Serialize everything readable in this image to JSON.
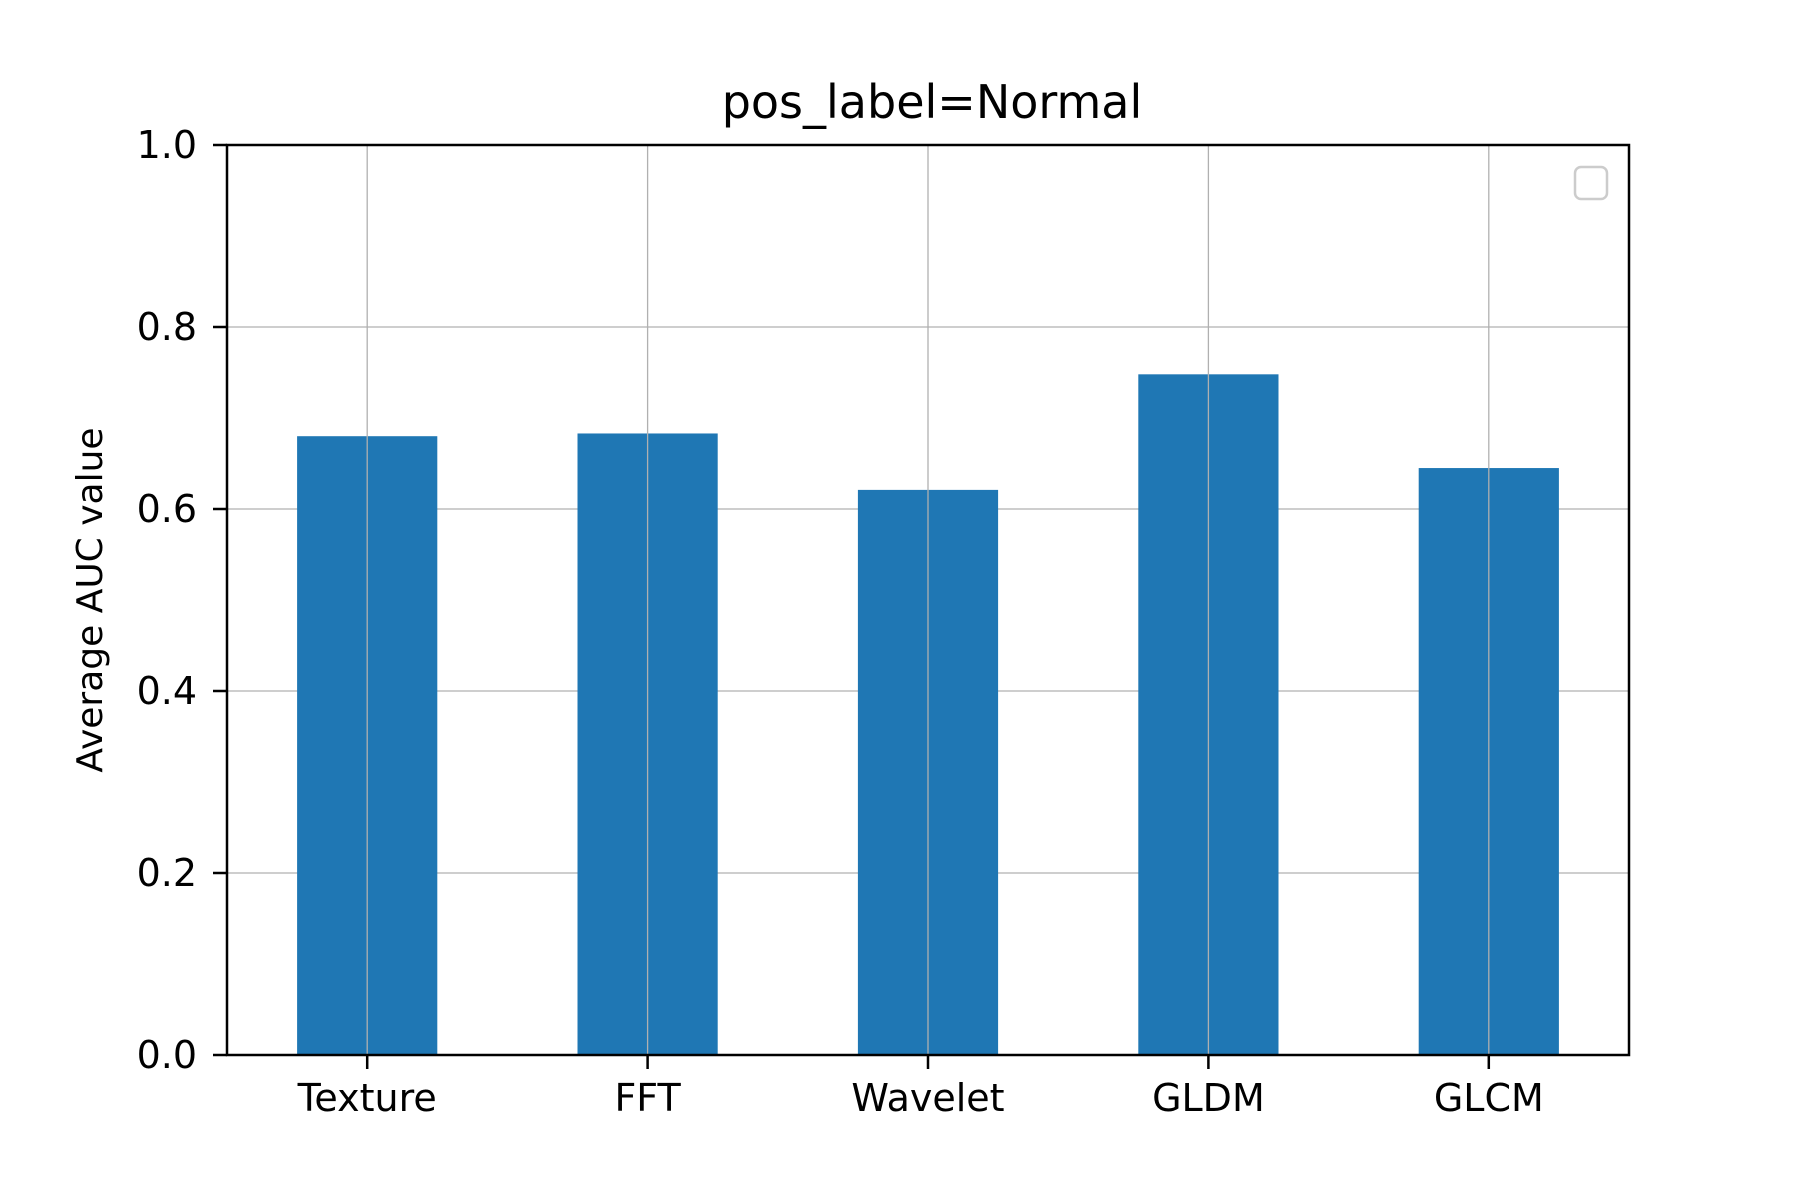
{
  "chart_data": {
    "type": "bar",
    "title": "pos_label=Normal",
    "xlabel": "",
    "ylabel": "Average AUC value",
    "categories": [
      "Texture",
      "FFT",
      "Wavelet",
      "GLDM",
      "GLCM"
    ],
    "values": [
      0.68,
      0.683,
      0.621,
      0.748,
      0.645
    ],
    "ylim": [
      0,
      1.0
    ],
    "yticks": [
      "0.0",
      "0.2",
      "0.4",
      "0.6",
      "0.8",
      "1.0"
    ],
    "grid": true,
    "legend": "empty box, top-right",
    "colors": {
      "bar": "#1f77b4",
      "grid": "#b0b0b0",
      "axis": "#000000",
      "legend_border": "#cccccc"
    }
  }
}
